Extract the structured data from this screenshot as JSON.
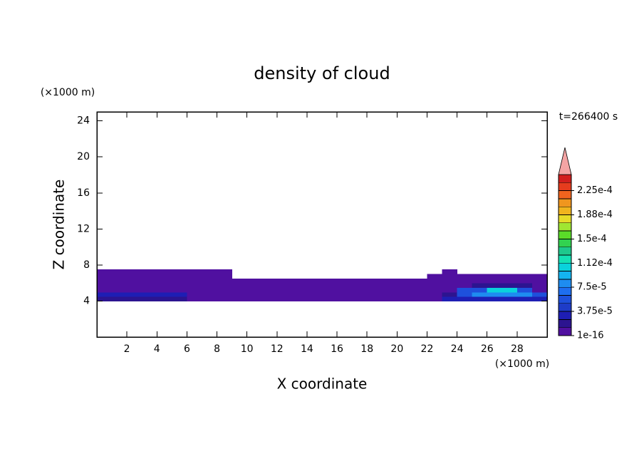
{
  "chart_data": {
    "type": "contour",
    "title": "density of cloud",
    "xlabel": "X coordinate",
    "ylabel": "Z coordinate",
    "xunit": "(×1000 m)",
    "yunit": "(×1000 m)",
    "annotation": "t=266400 s",
    "xlim": [
      0,
      30
    ],
    "ylim": [
      0,
      25
    ],
    "xticks": [
      2,
      4,
      6,
      8,
      10,
      12,
      14,
      16,
      18,
      20,
      22,
      24,
      26,
      28
    ],
    "yticks": [
      4,
      8,
      12,
      16,
      20,
      24
    ],
    "colorbar": {
      "levels": [
        {
          "value": 1e-16,
          "label": "1e-16"
        },
        1.25e-05,
        2.5e-05,
        {
          "value": 3.75e-05,
          "label": "3.75e-5"
        },
        5e-05,
        6.25e-05,
        {
          "value": 7.5e-05,
          "label": "7.5e-5"
        },
        8.75e-05,
        0.0001,
        {
          "value": 0.0001125,
          "label": "1.12e-4"
        },
        0.000125,
        0.0001375,
        {
          "value": 0.00015,
          "label": "1.5e-4"
        },
        0.0001625,
        0.000175,
        {
          "value": 0.0001875,
          "label": "1.88e-4"
        },
        0.0002,
        0.0002125,
        {
          "value": 0.000225,
          "label": "2.25e-4"
        },
        0.0002375,
        0.00025
      ],
      "colors": [
        "#5010a0",
        "#2c1490",
        "#1e1eb4",
        "#1e3cc8",
        "#1e50dc",
        "#1e6ef0",
        "#1e8cf0",
        "#14b4f0",
        "#0ad2dc",
        "#14e1b4",
        "#1ec88c",
        "#32d250",
        "#5adc28",
        "#a0e632",
        "#e6dc28",
        "#f0b41e",
        "#f0961e",
        "#f0641e",
        "#e63c1e",
        "#d21e1e"
      ],
      "extend_color": "#f4a4a4"
    },
    "field": {
      "x": [
        0.5,
        1.5,
        2.5,
        3.5,
        4.5,
        5.5,
        6.5,
        7.5,
        8.5,
        9.5,
        10.5,
        11.5,
        12.5,
        13.5,
        14.5,
        15.5,
        16.5,
        17.5,
        18.5,
        19.5,
        20.5,
        21.5,
        22.5,
        23.5,
        24.5,
        25.5,
        26.5,
        27.5,
        28.5,
        29.5
      ],
      "z": [
        4.25,
        4.75,
        5.25,
        5.75,
        6.25,
        6.75,
        7.25
      ],
      "values": [
        [
          2e-05,
          2e-05,
          2e-05,
          2e-05,
          2e-05,
          2e-05,
          5e-06,
          5e-06,
          5e-06,
          5e-06,
          5e-06,
          5e-06,
          5e-06,
          5e-06,
          5e-06,
          5e-06,
          5e-06,
          5e-06,
          5e-06,
          5e-06,
          5e-06,
          5e-06,
          5e-06,
          3e-05,
          3e-05,
          3e-05,
          3e-05,
          3e-05,
          3e-05,
          3e-05
        ],
        [
          3e-05,
          3e-05,
          3e-05,
          3e-05,
          3e-05,
          3e-05,
          5e-06,
          5e-06,
          5e-06,
          5e-06,
          5e-06,
          5e-06,
          5e-06,
          5e-06,
          5e-06,
          5e-06,
          5e-06,
          5e-06,
          5e-06,
          5e-06,
          5e-06,
          5e-06,
          5e-06,
          2e-05,
          5e-05,
          8e-05,
          8e-05,
          8e-05,
          8e-05,
          6e-05
        ],
        [
          5e-06,
          5e-06,
          5e-06,
          5e-06,
          5e-06,
          5e-06,
          5e-06,
          5e-06,
          5e-06,
          5e-06,
          5e-06,
          5e-06,
          5e-06,
          5e-06,
          5e-06,
          5e-06,
          5e-06,
          5e-06,
          5e-06,
          5e-06,
          5e-06,
          5e-06,
          5e-06,
          5e-06,
          6e-05,
          6e-05,
          0.0001,
          0.0001,
          6e-05,
          5e-06
        ],
        [
          5e-06,
          5e-06,
          5e-06,
          5e-06,
          5e-06,
          5e-06,
          5e-06,
          5e-06,
          5e-06,
          5e-06,
          5e-06,
          5e-06,
          5e-06,
          5e-06,
          5e-06,
          5e-06,
          5e-06,
          5e-06,
          5e-06,
          5e-06,
          5e-06,
          5e-06,
          5e-06,
          5e-06,
          5e-06,
          2e-05,
          2e-05,
          2e-05,
          2e-05,
          5e-06
        ],
        [
          5e-06,
          5e-06,
          5e-06,
          5e-06,
          5e-06,
          5e-06,
          5e-06,
          5e-06,
          5e-06,
          5e-06,
          5e-06,
          5e-06,
          5e-06,
          5e-06,
          5e-06,
          5e-06,
          5e-06,
          5e-06,
          5e-06,
          5e-06,
          5e-06,
          5e-06,
          5e-06,
          5e-06,
          5e-06,
          5e-06,
          5e-06,
          5e-06,
          5e-06,
          5e-06
        ],
        [
          5e-06,
          5e-06,
          5e-06,
          5e-06,
          5e-06,
          5e-06,
          5e-06,
          5e-06,
          5e-06,
          null,
          null,
          null,
          null,
          null,
          null,
          null,
          null,
          null,
          null,
          null,
          null,
          null,
          5e-06,
          5e-06,
          5e-06,
          5e-06,
          5e-06,
          5e-06,
          5e-06,
          5e-06
        ],
        [
          5e-06,
          5e-06,
          5e-06,
          5e-06,
          5e-06,
          5e-06,
          5e-06,
          5e-06,
          5e-06,
          null,
          null,
          null,
          null,
          null,
          null,
          null,
          null,
          null,
          null,
          null,
          null,
          null,
          null,
          5e-06,
          null,
          null,
          null,
          null,
          null,
          null
        ]
      ]
    }
  }
}
